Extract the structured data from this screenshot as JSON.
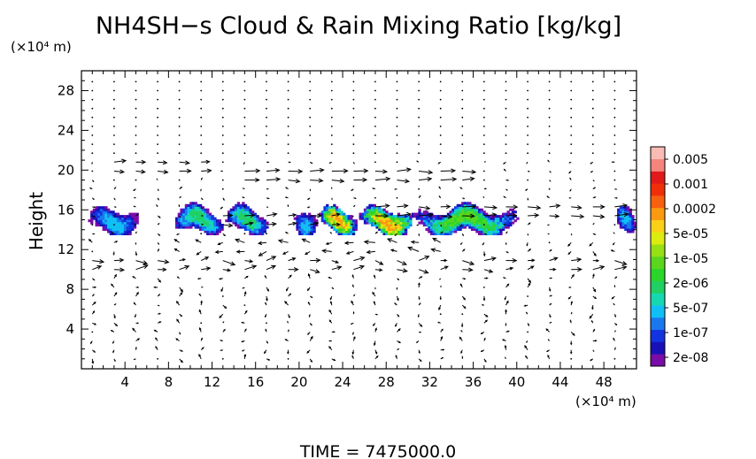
{
  "chart_data": {
    "type": "heatmap",
    "title": "NH4SH−s Cloud & Rain Mixing Ratio [kg/kg]",
    "ylabel": "Height",
    "y_unit": "(×10⁴ m)",
    "x_unit": "(×10⁴ m)",
    "footer": "TIME = 7475000.0",
    "xlim": [
      0,
      51
    ],
    "ylim": [
      0,
      30
    ],
    "x_ticks": [
      "4",
      "8",
      "12",
      "16",
      "20",
      "24",
      "28",
      "32",
      "36",
      "40",
      "44",
      "48"
    ],
    "y_ticks": [
      "4",
      "8",
      "12",
      "16",
      "20",
      "24",
      "28"
    ],
    "colorbar": {
      "labels": [
        "0.005",
        "0.001",
        "0.0002",
        "5e-05",
        "1e-05",
        "2e-06",
        "5e-07",
        "1e-07",
        "2e-08"
      ],
      "colors": [
        "#7a0ca8",
        "#1a10b8",
        "#1234e0",
        "#1a78ee",
        "#10c0f4",
        "#16d8b0",
        "#20d062",
        "#2ad62a",
        "#5ad61e",
        "#96e014",
        "#dcec0e",
        "#fcd018",
        "#fb9a10",
        "#f7600e",
        "#f02e0a",
        "#e01a1a",
        "#f4847c",
        "#f8bcb4"
      ]
    },
    "cloud_layer": {
      "altitude_range": [
        13.5,
        16.8
      ],
      "segments": [
        {
          "x_range": [
            0.6,
            5.2
          ],
          "max_level": 4
        },
        {
          "x_range": [
            8.4,
            13.0
          ],
          "max_level": 6
        },
        {
          "x_range": [
            13.2,
            17.0
          ],
          "max_level": 6
        },
        {
          "x_range": [
            19.5,
            21.5
          ],
          "max_level": 4
        },
        {
          "x_range": [
            21.8,
            25.2
          ],
          "max_level": 12
        },
        {
          "x_range": [
            25.5,
            30.5
          ],
          "max_level": 12
        },
        {
          "x_range": [
            30.5,
            40.0
          ],
          "max_level": 8
        },
        {
          "x_range": [
            49.0,
            50.8
          ],
          "max_level": 4
        }
      ]
    },
    "wind_jets": [
      {
        "altitude": 19.5,
        "x_range": [
          14,
          36
        ],
        "direction": "east",
        "strength": 0.7
      },
      {
        "altitude": 20.0,
        "x_range": [
          3,
          12
        ],
        "direction": "east",
        "strength": 0.5
      },
      {
        "altitude": 16.0,
        "x_range": [
          26,
          51
        ],
        "direction": "east",
        "strength": 0.6
      },
      {
        "altitude": 15.0,
        "x_range": [
          12,
          24
        ],
        "direction": "east",
        "strength": 0.5
      },
      {
        "altitude": 10.5,
        "x_range": [
          0,
          51
        ],
        "direction": "east",
        "strength": 0.45
      },
      {
        "altitude": 12.5,
        "x_range": [
          8,
          34
        ],
        "direction": "west",
        "strength": 0.4
      }
    ]
  }
}
